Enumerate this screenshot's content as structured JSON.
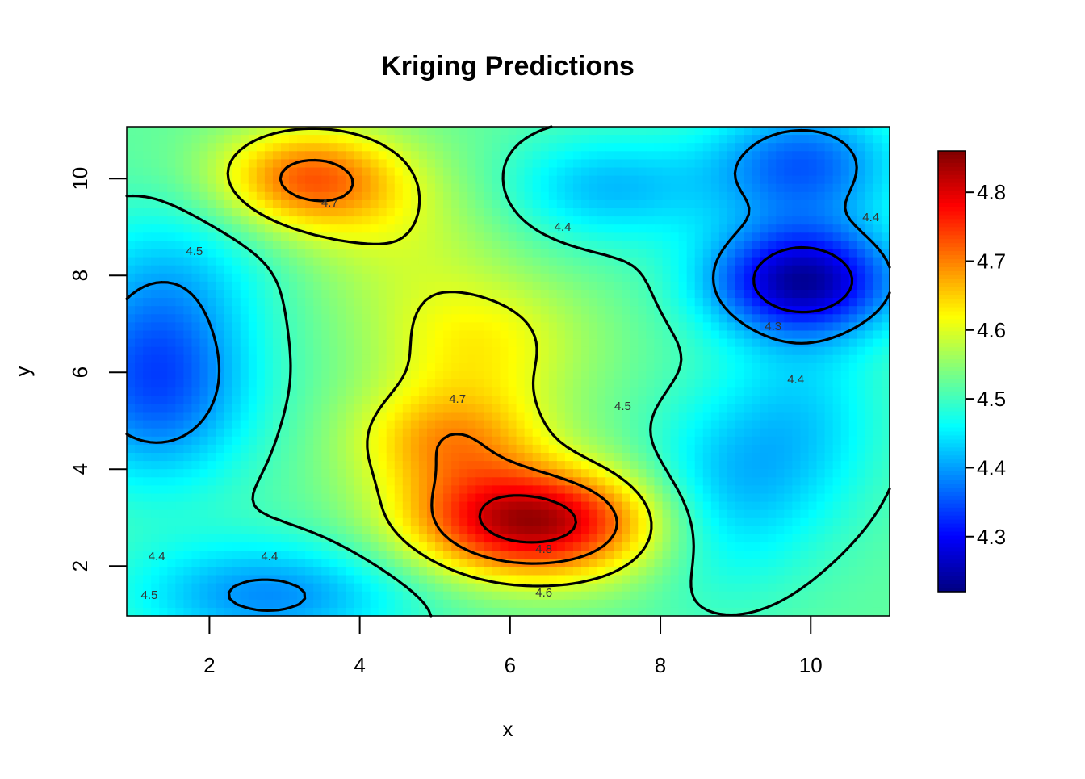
{
  "chart_data": {
    "type": "heatmap",
    "title": "Kriging Predictions",
    "xlabel": "x",
    "ylabel": "y",
    "xlim": [
      0.9,
      11.05
    ],
    "ylim": [
      0.97,
      11.07
    ],
    "x_ticks": [
      "2",
      "4",
      "6",
      "8",
      "10"
    ],
    "x_tick_values": [
      2,
      4,
      6,
      8,
      10
    ],
    "y_ticks": [
      "2",
      "4",
      "6",
      "8",
      "10"
    ],
    "y_tick_values": [
      2,
      4,
      6,
      8,
      10
    ],
    "colorbar": {
      "range": [
        4.22,
        4.86
      ],
      "ticks": [
        "4.3",
        "4.4",
        "4.5",
        "4.6",
        "4.7",
        "4.8"
      ],
      "tick_values": [
        4.3,
        4.4,
        4.5,
        4.6,
        4.7,
        4.8
      ],
      "colormap": [
        "#00007f",
        "#0000ff",
        "#007fff",
        "#00ffff",
        "#7fff7f",
        "#ffff00",
        "#ff7f00",
        "#ff0000",
        "#7f0000"
      ]
    },
    "base_level": 4.52,
    "surface_features": [
      {
        "x": 3.3,
        "y": 10.0,
        "amp": 0.19,
        "sx": 0.85,
        "sy": 0.75
      },
      {
        "x": 4.5,
        "y": 8.9,
        "amp": 0.06,
        "sx": 1.0,
        "sy": 1.2
      },
      {
        "x": 6.3,
        "y": 2.9,
        "amp": 0.32,
        "sx": 1.15,
        "sy": 0.8
      },
      {
        "x": 5.2,
        "y": 4.6,
        "amp": 0.15,
        "sx": 0.9,
        "sy": 0.8
      },
      {
        "x": 5.6,
        "y": 6.6,
        "amp": 0.1,
        "sx": 1.0,
        "sy": 1.0
      },
      {
        "x": 9.9,
        "y": 7.9,
        "amp": -0.27,
        "sx": 0.9,
        "sy": 0.8
      },
      {
        "x": 9.9,
        "y": 10.3,
        "amp": -0.16,
        "sx": 0.9,
        "sy": 0.9
      },
      {
        "x": 7.3,
        "y": 9.8,
        "amp": -0.1,
        "sx": 1.0,
        "sy": 0.8
      },
      {
        "x": 1.3,
        "y": 5.9,
        "amp": -0.18,
        "sx": 0.9,
        "sy": 1.5
      },
      {
        "x": 2.8,
        "y": 1.4,
        "amp": -0.13,
        "sx": 1.3,
        "sy": 0.8
      },
      {
        "x": 9.9,
        "y": 5.0,
        "amp": -0.08,
        "sx": 0.8,
        "sy": 1.5
      },
      {
        "x": 8.8,
        "y": 3.4,
        "amp": -0.09,
        "sx": 0.8,
        "sy": 1.4
      },
      {
        "x": 1.6,
        "y": 8.3,
        "amp": -0.05,
        "sx": 1.0,
        "sy": 1.0
      }
    ],
    "contour_levels": [
      4.3,
      4.4,
      4.5,
      4.6,
      4.7,
      4.8
    ],
    "contour_labels": [
      {
        "text": "4.7",
        "x": 3.6,
        "y": 9.5
      },
      {
        "text": "4.4",
        "x": 6.7,
        "y": 9.0
      },
      {
        "text": "4.4",
        "x": 10.8,
        "y": 9.2
      },
      {
        "text": "4.5",
        "x": 1.8,
        "y": 8.5
      },
      {
        "text": "4.3",
        "x": 9.5,
        "y": 6.95
      },
      {
        "text": "4.5",
        "x": 7.5,
        "y": 5.3
      },
      {
        "text": "4.4",
        "x": 9.8,
        "y": 5.85
      },
      {
        "text": "4.7",
        "x": 5.3,
        "y": 5.45
      },
      {
        "text": "4.8",
        "x": 6.45,
        "y": 2.35
      },
      {
        "text": "4.4",
        "x": 1.3,
        "y": 2.2
      },
      {
        "text": "4.4",
        "x": 2.8,
        "y": 2.2
      },
      {
        "text": "4.5",
        "x": 1.2,
        "y": 1.4
      },
      {
        "text": "4.6",
        "x": 6.45,
        "y": 1.45
      }
    ]
  }
}
